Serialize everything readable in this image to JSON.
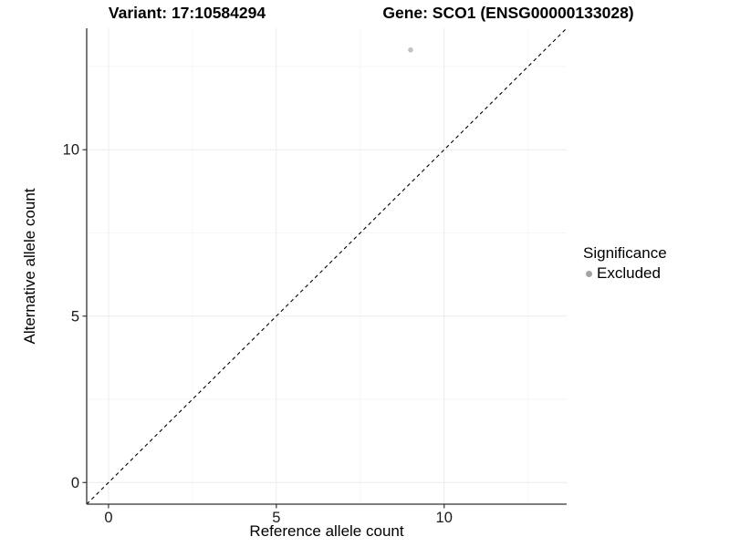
{
  "chart_data": {
    "type": "scatter",
    "title_left": "Variant: 17:10584294",
    "title_right": "Gene: SCO1 (ENSG00000133028)",
    "xlabel": "Reference allele count",
    "ylabel": "Alternative allele count",
    "xlim": [
      -0.65,
      13.65
    ],
    "ylim": [
      -0.65,
      13.65
    ],
    "x_ticks": [
      0,
      5,
      10
    ],
    "y_ticks": [
      0,
      5,
      10
    ],
    "x_minor_ticks": [
      2.5,
      7.5,
      12.5
    ],
    "y_minor_ticks": [
      2.5,
      7.5,
      12.5
    ],
    "grid": "major+minor",
    "legend_position": "right",
    "series": [
      {
        "name": "Excluded",
        "color": "#c2c2c2",
        "point_radius": 2.8,
        "points": [
          [
            9,
            13
          ]
        ]
      }
    ],
    "reference_line": {
      "label": "identity y=x",
      "style": "dashed",
      "color": "#000000",
      "from": [
        -0.65,
        -0.65
      ],
      "to": [
        13.65,
        13.65
      ]
    }
  },
  "legend": {
    "title": "Significance",
    "items": [
      {
        "label": "Excluded",
        "color": "#a3a3a3"
      }
    ]
  },
  "colors": {
    "grid_major": "#ececec",
    "grid_minor": "#f6f6f6",
    "axis_line": "#333333",
    "tick_mark": "#333333",
    "tick_label": "#1a1a1a"
  }
}
